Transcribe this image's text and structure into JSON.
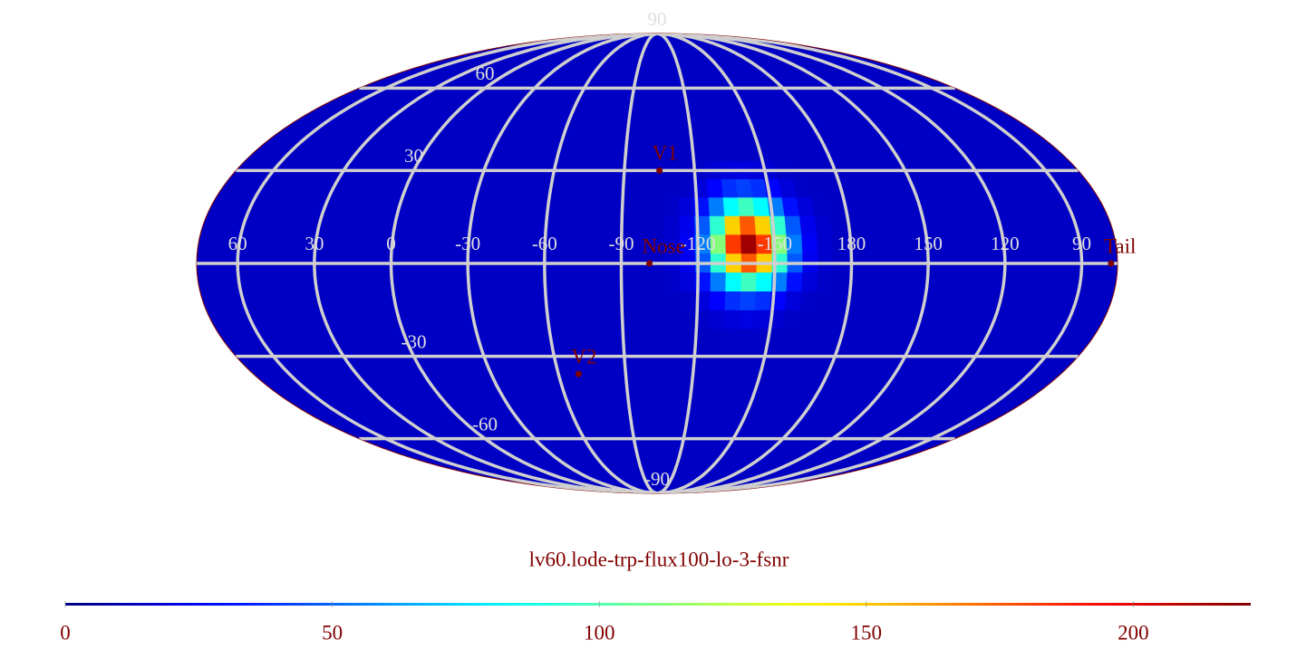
{
  "chart_data": {
    "type": "heatmap",
    "projection": "mollweide",
    "center_lon": -104,
    "colormap": "jet",
    "title": "lv60.lode-trp-flux100-lo-3-fsnr",
    "clim": [
      0,
      222
    ],
    "cticks": [
      0,
      50,
      100,
      150,
      200
    ],
    "background_value": 15,
    "graticule": {
      "lon": [
        60,
        30,
        0,
        -30,
        -60,
        -90,
        -120,
        -150,
        180,
        150,
        120,
        90
      ],
      "lat": [
        90,
        60,
        30,
        -30,
        -60,
        -90
      ]
    },
    "x": [
      -110,
      -116,
      -122,
      -128,
      -134,
      -140,
      -146,
      -152,
      -158,
      -164,
      -170,
      -176
    ],
    "y": [
      30,
      24,
      18,
      12,
      6,
      0,
      -6,
      -12,
      -18,
      -24
    ],
    "values": [
      [
        15,
        15,
        16,
        18,
        20,
        21,
        20,
        18,
        16,
        15,
        15,
        15
      ],
      [
        15,
        16,
        20,
        28,
        38,
        42,
        38,
        28,
        20,
        16,
        15,
        15
      ],
      [
        16,
        20,
        31,
        55,
        83,
        97,
        83,
        55,
        31,
        20,
        16,
        15
      ],
      [
        17,
        24,
        47,
        93,
        149,
        175,
        149,
        93,
        47,
        24,
        17,
        15
      ],
      [
        17,
        26,
        55,
        112,
        182,
        215,
        182,
        112,
        55,
        26,
        17,
        15
      ],
      [
        17,
        24,
        47,
        93,
        149,
        175,
        149,
        93,
        47,
        24,
        17,
        15
      ],
      [
        16,
        20,
        31,
        55,
        83,
        97,
        83,
        55,
        31,
        20,
        16,
        15
      ],
      [
        15,
        16,
        20,
        28,
        38,
        42,
        38,
        28,
        20,
        16,
        15,
        15
      ],
      [
        15,
        15,
        16,
        18,
        20,
        21,
        20,
        18,
        16,
        15,
        15,
        15
      ],
      [
        15,
        15,
        15,
        15,
        16,
        16,
        16,
        15,
        15,
        15,
        15,
        15
      ]
    ],
    "markers": [
      {
        "label": "V1",
        "lon": -105,
        "lat": 30
      },
      {
        "label": "Nose",
        "lon": -101,
        "lat": 0
      },
      {
        "label": "V2",
        "lon": -69,
        "lat": -36
      },
      {
        "label": "Tail",
        "lon": 78.5,
        "lat": 0
      }
    ]
  }
}
